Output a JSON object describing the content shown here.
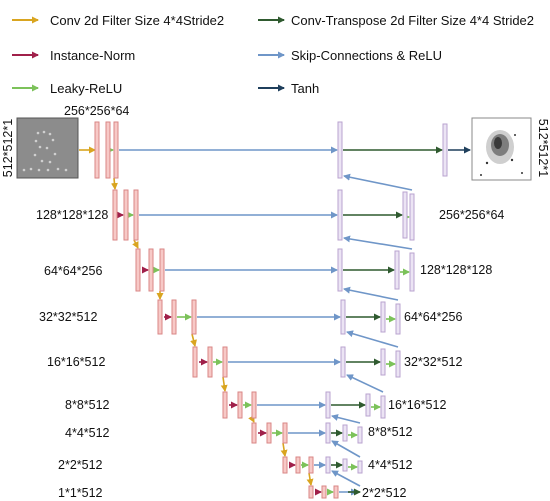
{
  "legend": {
    "conv": "Conv 2d Filter Size 4*4Stride2",
    "deconv": "Conv-Transpose 2d Filter Size 4*4 Stride2",
    "instnorm": "Instance-Norm",
    "skip": "Skip-Connections & ReLU",
    "leaky": "Leaky-ReLU",
    "tanh": "Tanh"
  },
  "labels": {
    "input_size": "512*512*1",
    "output_size": "512*512*1",
    "enc": [
      "256*256*64",
      "128*128*128",
      "64*64*256",
      "32*32*512",
      "16*16*512",
      "8*8*512",
      "4*4*512",
      "2*2*512",
      "1*1*512"
    ],
    "dec": [
      "256*256*64",
      "128*128*128",
      "64*64*256",
      "32*32*512",
      "16*16*512",
      "8*8*512",
      "4*4*512",
      "2*2*512"
    ]
  },
  "colors": {
    "conv": "#d9a520",
    "deconv": "#2f5a2f",
    "instnorm": "#a0204a",
    "leaky": "#7cc25a",
    "skip": "#6f96c8",
    "tanh": "#1f3f5c",
    "enc_block_fill": "#f7c9c7",
    "enc_block_stroke": "#d98686",
    "dec_block_fill": "#ece4f4",
    "dec_block_stroke": "#b9a3cf"
  }
}
